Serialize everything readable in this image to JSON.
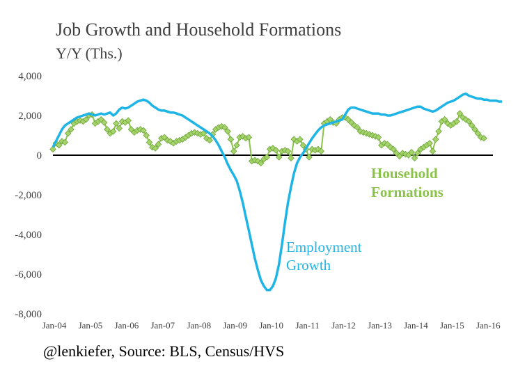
{
  "chart_data": {
    "type": "line",
    "title": "Job Growth and Household Formations",
    "subtitle": "Y/Y (Ths.)",
    "source": "@lenkiefer, Source: BLS, Census/HVS",
    "ylim": [
      -8000,
      4000
    ],
    "y_ticks": [
      "4,000",
      "2,000",
      "0",
      "-2,000",
      "-4,000",
      "-6,000",
      "-8,000"
    ],
    "y_tick_values": [
      4000,
      2000,
      0,
      -2000,
      -4000,
      -6000,
      -8000
    ],
    "x_ticks": [
      "Jan-04",
      "Jan-05",
      "Jan-06",
      "Jan-07",
      "Jan-08",
      "Jan-09",
      "Jan-10",
      "Jan-11",
      "Jan-12",
      "Jan-13",
      "Jan-14",
      "Jan-15",
      "Jan-16"
    ],
    "x_start_year": 2004,
    "grid": false,
    "zero_line": true,
    "series": [
      {
        "name": "Employment Growth",
        "label_lines": [
          "Employment",
          "Growth"
        ],
        "color": "#1fb4e6",
        "marker": "none",
        "values": [
          400,
          700,
          1000,
          1300,
          1500,
          1600,
          1700,
          1800,
          1900,
          1950,
          2000,
          2050,
          2100,
          2050,
          2000,
          2050,
          2100,
          2050,
          2100,
          2150,
          2000,
          2100,
          2300,
          2400,
          2350,
          2400,
          2500,
          2600,
          2700,
          2750,
          2800,
          2750,
          2650,
          2500,
          2400,
          2300,
          2250,
          2250,
          2200,
          2150,
          2150,
          2100,
          2050,
          2000,
          1900,
          1800,
          1700,
          1600,
          1500,
          1400,
          1300,
          1200,
          1100,
          950,
          750,
          500,
          200,
          -100,
          -450,
          -750,
          -1000,
          -1300,
          -1800,
          -2400,
          -3100,
          -3800,
          -4500,
          -5200,
          -5800,
          -6300,
          -6600,
          -6800,
          -6800,
          -6600,
          -6200,
          -5500,
          -4500,
          -3400,
          -2400,
          -1600,
          -900,
          -400,
          -100,
          100,
          350,
          600,
          850,
          1050,
          1250,
          1400,
          1500,
          1550,
          1600,
          1650,
          1700,
          1750,
          1800,
          2050,
          2300,
          2400,
          2400,
          2350,
          2300,
          2250,
          2200,
          2150,
          2100,
          2100,
          2100,
          2050,
          2050,
          2000,
          2000,
          2050,
          2100,
          2150,
          2200,
          2250,
          2300,
          2350,
          2400,
          2450,
          2450,
          2350,
          2300,
          2250,
          2200,
          2250,
          2350,
          2450,
          2550,
          2650,
          2700,
          2750,
          2850,
          2950,
          3050,
          3100,
          3000,
          2950,
          2900,
          2850,
          2850,
          2800,
          2800,
          2750,
          2750,
          2750,
          2700,
          2700
        ]
      },
      {
        "name": "Household Formations",
        "label_lines": [
          "Household",
          "Formations"
        ],
        "color": "#8bc34a",
        "marker": "diamond",
        "values": [
          300,
          600,
          500,
          700,
          650,
          1100,
          1300,
          1600,
          1700,
          1750,
          1700,
          1800,
          2000,
          2050,
          1600,
          1700,
          1800,
          1650,
          1300,
          1100,
          1200,
          1600,
          1350,
          1700,
          1650,
          1750,
          1300,
          1150,
          1250,
          1300,
          1250,
          1000,
          650,
          400,
          350,
          550,
          850,
          900,
          750,
          700,
          600,
          700,
          750,
          800,
          900,
          1000,
          1100,
          1150,
          1100,
          1050,
          1100,
          850,
          750,
          1050,
          1300,
          1400,
          1450,
          1400,
          1200,
          800,
          200,
          500,
          900,
          950,
          850,
          900,
          -300,
          -250,
          -300,
          -400,
          -200,
          -100,
          300,
          350,
          250,
          -100,
          200,
          250,
          200,
          -150,
          800,
          700,
          800,
          500,
          300,
          -100,
          300,
          250,
          300,
          200,
          1600,
          1700,
          1800,
          1650,
          1600,
          1800,
          1900,
          1900,
          1800,
          1650,
          1500,
          1400,
          1200,
          1150,
          1100,
          1050,
          1000,
          950,
          900,
          500,
          600,
          550,
          400,
          300,
          100,
          -50,
          100,
          50,
          0,
          150,
          -150,
          100,
          300,
          400,
          500,
          600,
          200,
          800,
          1200,
          1700,
          1800,
          1600,
          1500,
          1600,
          1700,
          2100,
          1900,
          1800,
          1700,
          1500,
          1300,
          1100,
          900,
          850
        ]
      }
    ]
  }
}
